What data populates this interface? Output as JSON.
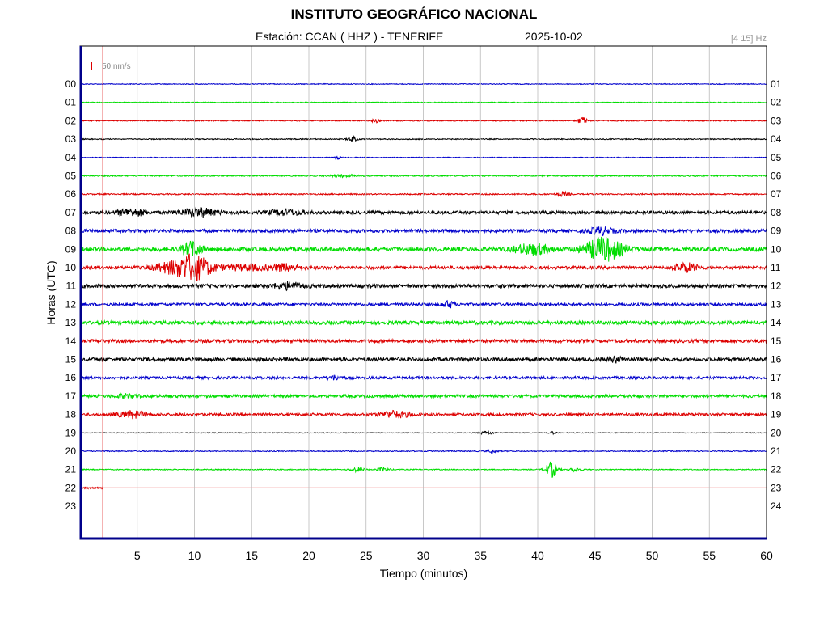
{
  "header": {
    "title": "INSTITUTO GEOGRÁFICO NACIONAL",
    "station": "Estación:  CCAN ( HHZ ) - TENERIFE",
    "date": "2025-10-02",
    "filter": "[4 15] Hz"
  },
  "chart_data": {
    "type": "line",
    "title": "INSTITUTO GEOGRÁFICO NACIONAL",
    "xlabel": "Tiempo (minutos)",
    "ylabel": "Horas (UTC)",
    "xlim": [
      0,
      60
    ],
    "x_ticks": [
      5,
      10,
      15,
      20,
      25,
      30,
      35,
      40,
      45,
      50,
      55,
      60
    ],
    "left_hours": [
      "00",
      "01",
      "02",
      "03",
      "04",
      "05",
      "06",
      "07",
      "08",
      "09",
      "10",
      "11",
      "12",
      "13",
      "14",
      "15",
      "16",
      "17",
      "18",
      "19",
      "20",
      "21",
      "22",
      "23"
    ],
    "right_hours": [
      "01",
      "02",
      "03",
      "04",
      "05",
      "06",
      "07",
      "08",
      "09",
      "10",
      "11",
      "12",
      "13",
      "14",
      "15",
      "16",
      "17",
      "18",
      "19",
      "20",
      "21",
      "22",
      "23",
      "24"
    ],
    "scale_label": "50 nm/s",
    "current_time_marker_min": 2,
    "colors": [
      "#0000cc",
      "#00dd00",
      "#dd0000",
      "#000000"
    ],
    "traces": [
      {
        "hour": "00",
        "amp": 0.5,
        "end": 60,
        "events": []
      },
      {
        "hour": "01",
        "amp": 0.5,
        "end": 60,
        "events": []
      },
      {
        "hour": "02",
        "amp": 0.6,
        "end": 60,
        "events": [
          {
            "t": 25.8,
            "a": 2.5,
            "d": 0.3
          },
          {
            "t": 43.9,
            "a": 4.5,
            "d": 0.4
          }
        ]
      },
      {
        "hour": "03",
        "amp": 0.6,
        "end": 60,
        "events": [
          {
            "t": 23.8,
            "a": 3,
            "d": 0.4
          }
        ]
      },
      {
        "hour": "04",
        "amp": 0.5,
        "end": 60,
        "events": [
          {
            "t": 22.5,
            "a": 2,
            "d": 0.3
          }
        ]
      },
      {
        "hour": "05",
        "amp": 0.8,
        "end": 60,
        "events": [
          {
            "t": 23,
            "a": 1.5,
            "d": 1
          }
        ]
      },
      {
        "hour": "06",
        "amp": 0.8,
        "end": 60,
        "events": [
          {
            "t": 42.2,
            "a": 3,
            "d": 0.5
          }
        ]
      },
      {
        "hour": "07",
        "amp": 2.0,
        "end": 60,
        "events": [
          {
            "t": 4.5,
            "a": 4,
            "d": 1.2
          },
          {
            "t": 10.3,
            "a": 5,
            "d": 1.5
          },
          {
            "t": 18,
            "a": 3,
            "d": 1.5
          }
        ]
      },
      {
        "hour": "08",
        "amp": 2.0,
        "end": 60,
        "events": [
          {
            "t": 45.5,
            "a": 4,
            "d": 1
          }
        ]
      },
      {
        "hour": "09",
        "amp": 2.5,
        "end": 60,
        "events": [
          {
            "t": 9.8,
            "a": 9,
            "d": 0.8
          },
          {
            "t": 39.5,
            "a": 6,
            "d": 1.5
          },
          {
            "t": 45.8,
            "a": 14,
            "d": 1.6
          }
        ]
      },
      {
        "hour": "10",
        "amp": 2.0,
        "end": 60,
        "events": [
          {
            "t": 7.5,
            "a": 4,
            "d": 1.2
          },
          {
            "t": 9.8,
            "a": 16,
            "d": 1.6
          },
          {
            "t": 14.5,
            "a": 3,
            "d": 2
          },
          {
            "t": 18,
            "a": 4,
            "d": 1.2
          },
          {
            "t": 53,
            "a": 5,
            "d": 1
          }
        ]
      },
      {
        "hour": "11",
        "amp": 2.2,
        "end": 60,
        "events": [
          {
            "t": 18.2,
            "a": 4,
            "d": 1.2
          }
        ]
      },
      {
        "hour": "12",
        "amp": 1.6,
        "end": 60,
        "events": [
          {
            "t": 32.2,
            "a": 4,
            "d": 0.5
          }
        ]
      },
      {
        "hour": "13",
        "amp": 2.2,
        "end": 60,
        "events": []
      },
      {
        "hour": "14",
        "amp": 2.0,
        "end": 60,
        "events": []
      },
      {
        "hour": "15",
        "amp": 2.2,
        "end": 60,
        "events": [
          {
            "t": 46.8,
            "a": 3,
            "d": 0.6
          }
        ]
      },
      {
        "hour": "16",
        "amp": 1.6,
        "end": 60,
        "events": [
          {
            "t": 22.3,
            "a": 2.5,
            "d": 0.6
          }
        ]
      },
      {
        "hour": "17",
        "amp": 1.8,
        "end": 60,
        "events": [
          {
            "t": 4,
            "a": 2,
            "d": 1
          }
        ]
      },
      {
        "hour": "18",
        "amp": 1.6,
        "end": 60,
        "events": [
          {
            "t": 4.5,
            "a": 4,
            "d": 1.2
          },
          {
            "t": 27.5,
            "a": 4,
            "d": 1.2
          }
        ]
      },
      {
        "hour": "19",
        "amp": 0.4,
        "end": 60,
        "events": [
          {
            "t": 35.5,
            "a": 2,
            "d": 0.6
          },
          {
            "t": 41.3,
            "a": 1.5,
            "d": 0.3
          }
        ]
      },
      {
        "hour": "20",
        "amp": 0.6,
        "end": 60,
        "events": [
          {
            "t": 36,
            "a": 2,
            "d": 0.4
          }
        ]
      },
      {
        "hour": "21",
        "amp": 0.6,
        "end": 60,
        "events": [
          {
            "t": 24.2,
            "a": 2.5,
            "d": 0.6
          },
          {
            "t": 26.5,
            "a": 2.5,
            "d": 0.5
          },
          {
            "t": 41.2,
            "a": 10,
            "d": 0.5
          },
          {
            "t": 43.3,
            "a": 2.5,
            "d": 0.5
          }
        ]
      },
      {
        "hour": "22",
        "amp": 0.6,
        "end": 2,
        "events": []
      }
    ]
  }
}
